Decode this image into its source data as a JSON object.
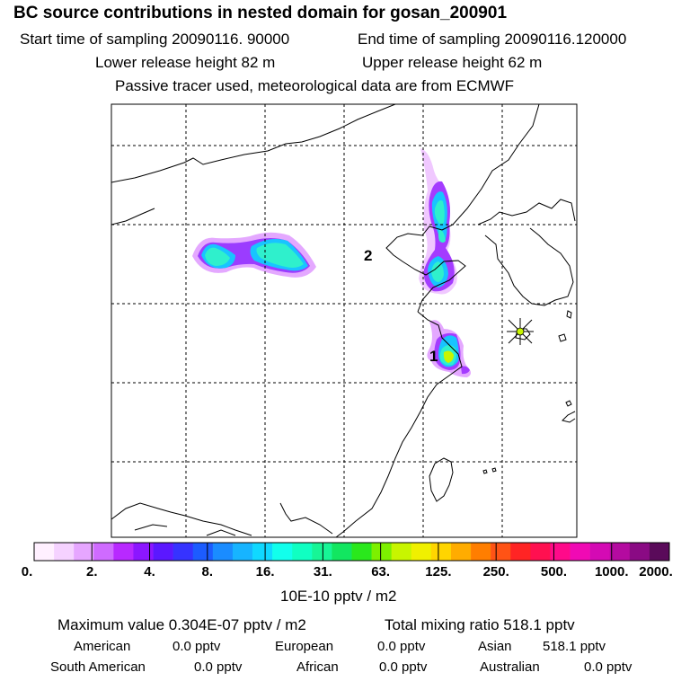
{
  "header": {
    "title": "BC  source contributions in nested domain for gosan_200901",
    "start_time": "Start time of sampling 20090116. 90000",
    "end_time": "End time of sampling 20090116.120000",
    "lower_height": "Lower release height   82 m",
    "upper_height": "Upper release height   62 m",
    "tracer_note": "Passive tracer used, meteorological data are from ECMWF"
  },
  "map": {
    "markers": [
      {
        "label": "2"
      },
      {
        "label": "1"
      }
    ],
    "receptor": "gosan-station-star"
  },
  "colorbar": {
    "unit": "10E-10 pptv / m2",
    "labels": [
      "0.",
      "2.",
      "4.",
      "8.",
      "16.",
      "31.",
      "63.",
      "125.",
      "250.",
      "500.",
      "1000.",
      "2000."
    ],
    "colors": [
      "#fff0ff",
      "#f5d2ff",
      "#e6a6ff",
      "#cf6bff",
      "#b829ff",
      "#8c16ff",
      "#5b18ff",
      "#3633ff",
      "#1c5cff",
      "#1a8cff",
      "#17b4ff",
      "#10d8ff",
      "#12ffec",
      "#10ffc2",
      "#17f596",
      "#12e660",
      "#2ae81c",
      "#7df000",
      "#c8f500",
      "#f0f000",
      "#ffd500",
      "#ffac00",
      "#ff7e00",
      "#ff5315",
      "#ff2424",
      "#ff1050",
      "#ff0a8a",
      "#f00ab4",
      "#d40ab4",
      "#b40aa0",
      "#8a0a84",
      "#5a0a5a"
    ]
  },
  "summary": {
    "maximum_value": "Maximum value  0.304E-07 pptv / m2",
    "total_mixing_ratio": "Total mixing ratio     518.1 pptv",
    "regions": [
      {
        "name": "American",
        "value": "0.0 pptv"
      },
      {
        "name": "European",
        "value": "0.0 pptv"
      },
      {
        "name": "Asian",
        "value": "518.1 pptv"
      },
      {
        "name": "South American",
        "value": "0.0 pptv"
      },
      {
        "name": "African",
        "value": "0.0 pptv"
      },
      {
        "name": "Australian",
        "value": "0.0 pptv"
      }
    ]
  }
}
